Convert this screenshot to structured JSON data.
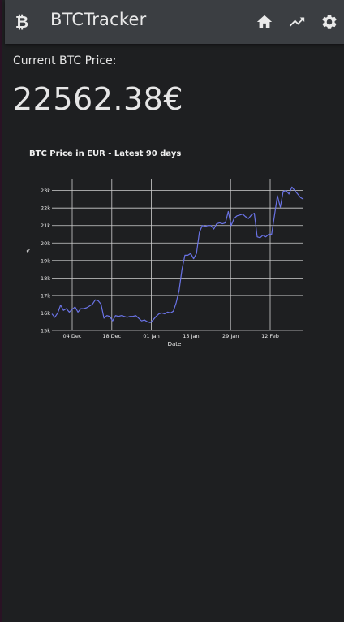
{
  "app": {
    "title": "BTCTracker",
    "logo_icon": "bitcoin-icon",
    "nav": [
      {
        "name": "home",
        "icon": "home-icon"
      },
      {
        "name": "trend",
        "icon": "trending-up-icon"
      },
      {
        "name": "settings",
        "icon": "gear-icon"
      }
    ]
  },
  "price": {
    "label": "Current BTC Price:",
    "value": "22562.38€"
  },
  "colors": {
    "appbar": "#3b3e42",
    "background": "#1e1f21",
    "line": "#6a73e6"
  },
  "chart_data": {
    "type": "line",
    "title": "BTC Price in EUR - Latest 90 days",
    "xlabel": "Date",
    "ylabel": "€",
    "x_ticks": [
      "04 Dec",
      "18 Dec",
      "01 Jan",
      "15 Jan",
      "29 Jan",
      "12 Feb"
    ],
    "y_ticks": [
      "15k",
      "16k",
      "17k",
      "18k",
      "19k",
      "20k",
      "21k",
      "22k",
      "23k"
    ],
    "ylim": [
      15000,
      23400
    ],
    "grid": true,
    "series": [
      {
        "values": [
          15950,
          15750,
          16000,
          16450,
          16150,
          16250,
          16050,
          16200,
          16350,
          16050,
          16250,
          16250,
          16300,
          16400,
          16500,
          16750,
          16700,
          16500,
          15700,
          15850,
          15800,
          15550,
          15850,
          15800,
          15850,
          15800,
          15750,
          15800,
          15800,
          15850,
          15700,
          15550,
          15600,
          15500,
          15450,
          15600,
          15800,
          15950,
          16000,
          15950,
          16050,
          16000,
          16100,
          16600,
          17300,
          18500,
          19300,
          19300,
          19400,
          19100,
          19400,
          20600,
          21000,
          20950,
          21000,
          21000,
          20800,
          21100,
          21150,
          21100,
          21150,
          21800,
          21000,
          21400,
          21550,
          21600,
          21650,
          21500,
          21400,
          21600,
          21700,
          20350,
          20300,
          20450,
          20350,
          20500,
          20500,
          21600,
          22700,
          22050,
          22950,
          23000,
          22800,
          23200,
          23000,
          22800,
          22600,
          22500
        ]
      }
    ]
  }
}
